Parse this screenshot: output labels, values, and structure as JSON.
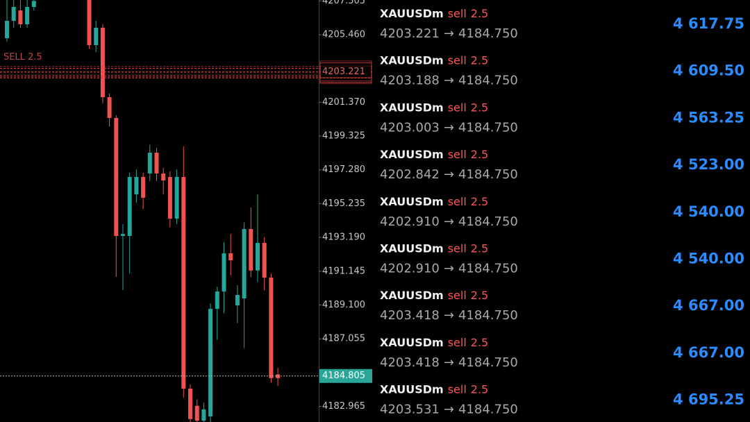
{
  "price_chart": {
    "ylim": [
      4182.02,
      4207.56
    ],
    "yticks": [
      {
        "value": 4207.505,
        "label": "4207.505"
      },
      {
        "value": 4205.46,
        "label": "4205.460"
      },
      {
        "value": 4201.37,
        "label": "4201.370"
      },
      4199.325,
      {
        "value": 4197.28,
        "label": "4197.280"
      },
      4195.235,
      {
        "value": 4193.19,
        "label": "4193.190"
      },
      4191.145,
      {
        "value": 4189.1,
        "label": "4189.100"
      },
      4187.055,
      4182.965
    ],
    "current_price": 4184.805,
    "order_label": "SELL 2.5",
    "up_color": "#26a69a",
    "down_color": "#ef5350",
    "candles": [
      {
        "open": 4205.25,
        "high": 4207.56,
        "low": 4205.04,
        "close": 4206.3
      },
      {
        "open": 4206.3,
        "high": 4207.6,
        "low": 4205.88,
        "close": 4207.14
      },
      {
        "open": 4206.93,
        "high": 4207.6,
        "low": 4205.88,
        "close": 4206.09
      },
      {
        "open": 4206.09,
        "high": 4207.6,
        "low": 4205.88,
        "close": 4207.14
      },
      {
        "open": 4207.14,
        "high": 4207.6,
        "low": 4206.93,
        "close": 4207.5
      },
      {
        "open": 4207.6,
        "high": 4207.6,
        "low": 4204.6,
        "close": 4204.83
      },
      {
        "open": 4204.83,
        "high": 4206.3,
        "low": 4204.4,
        "close": 4205.88
      },
      {
        "open": 4205.88,
        "high": 4206.1,
        "low": 4201.3,
        "close": 4201.68
      },
      {
        "open": 4201.68,
        "high": 4201.9,
        "low": 4199.9,
        "close": 4200.42
      },
      {
        "open": 4200.42,
        "high": 4200.6,
        "low": 4190.8,
        "close": 4193.28
      },
      {
        "open": 4193.28,
        "high": 4194.0,
        "low": 4190.0,
        "close": 4193.4
      },
      {
        "open": 4193.28,
        "high": 4197.1,
        "low": 4191.0,
        "close": 4196.85
      },
      {
        "open": 4195.8,
        "high": 4197.3,
        "low": 4195.3,
        "close": 4196.85
      },
      {
        "open": 4196.85,
        "high": 4197.1,
        "low": 4194.9,
        "close": 4195.59
      },
      {
        "open": 4197.06,
        "high": 4198.8,
        "low": 4196.6,
        "close": 4198.32
      },
      {
        "open": 4198.32,
        "high": 4198.6,
        "low": 4196.6,
        "close": 4197.06
      },
      {
        "open": 4197.06,
        "high": 4197.4,
        "low": 4195.8,
        "close": 4196.64
      },
      {
        "open": 4196.85,
        "high": 4197.2,
        "low": 4193.8,
        "close": 4194.33
      },
      {
        "open": 4194.33,
        "high": 4197.3,
        "low": 4194.0,
        "close": 4196.85
      },
      {
        "open": 4196.85,
        "high": 4198.7,
        "low": 4183.5,
        "close": 4184.04
      },
      {
        "open": 4184.04,
        "high": 4184.3,
        "low": 4181.9,
        "close": 4182.2
      },
      {
        "open": 4183.0,
        "high": 4183.4,
        "low": 4181.9,
        "close": 4182.1
      },
      {
        "open": 4182.1,
        "high": 4183.2,
        "low": 4181.9,
        "close": 4182.78
      },
      {
        "open": 4182.36,
        "high": 4189.2,
        "low": 4181.9,
        "close": 4188.87
      },
      {
        "open": 4188.87,
        "high": 4190.2,
        "low": 4187.0,
        "close": 4189.92
      },
      {
        "open": 4189.92,
        "high": 4192.9,
        "low": 4188.6,
        "close": 4192.23
      },
      {
        "open": 4192.23,
        "high": 4193.4,
        "low": 4190.9,
        "close": 4191.81
      },
      {
        "open": 4189.08,
        "high": 4190.3,
        "low": 4188.0,
        "close": 4189.71
      },
      {
        "open": 4189.5,
        "high": 4194.1,
        "low": 4186.5,
        "close": 4193.7
      },
      {
        "open": 4193.7,
        "high": 4195.0,
        "low": 4190.8,
        "close": 4191.19
      },
      {
        "open": 4191.19,
        "high": 4195.8,
        "low": 4190.5,
        "close": 4192.86
      },
      {
        "open": 4192.86,
        "high": 4193.2,
        "low": 4190.0,
        "close": 4190.76
      },
      {
        "open": 4190.76,
        "high": 4191.0,
        "low": 4184.4,
        "close": 4184.67
      },
      {
        "open": 4184.9,
        "high": 4185.3,
        "low": 4184.2,
        "close": 4184.67
      }
    ]
  },
  "arrow": "→",
  "orders": [
    {
      "symbol": "XAUUSDm",
      "side": "sell",
      "volume": 2.5,
      "open": {
        "value": 4203.221,
        "label": "4203.221"
      },
      "close": {
        "value": 4184.75,
        "label": "4184.750"
      },
      "profit": {
        "value": 4617.75,
        "label": "4 617.75"
      }
    },
    {
      "symbol": "XAUUSDm",
      "side": "sell",
      "volume": 2.5,
      "open": {
        "value": 4203.188,
        "label": "4203.188"
      },
      "close": {
        "value": 4184.75,
        "label": "4184.750"
      },
      "profit": {
        "value": 4609.5,
        "label": "4 609.50"
      }
    },
    {
      "symbol": "XAUUSDm",
      "side": "sell",
      "volume": 2.5,
      "open": {
        "value": 4203.003,
        "label": "4203.003"
      },
      "close": {
        "value": 4184.75,
        "label": "4184.750"
      },
      "profit": {
        "value": 4563.25,
        "label": "4 563.25"
      }
    },
    {
      "symbol": "XAUUSDm",
      "side": "sell",
      "volume": 2.5,
      "open": {
        "value": 4202.842,
        "label": "4202.842"
      },
      "close": {
        "value": 4184.75,
        "label": "4184.750"
      },
      "profit": {
        "value": 4523,
        "label": "4 523.00"
      }
    },
    {
      "symbol": "XAUUSDm",
      "side": "sell",
      "volume": 2.5,
      "open": {
        "value": 4202.91,
        "label": "4202.910"
      },
      "close": {
        "value": 4184.75,
        "label": "4184.750"
      },
      "profit": {
        "value": 4540,
        "label": "4 540.00"
      }
    },
    {
      "symbol": "XAUUSDm",
      "side": "sell",
      "volume": 2.5,
      "open": {
        "value": 4202.91,
        "label": "4202.910"
      },
      "close": {
        "value": 4184.75,
        "label": "4184.750"
      },
      "profit": {
        "value": 4540,
        "label": "4 540.00"
      }
    },
    {
      "symbol": "XAUUSDm",
      "side": "sell",
      "volume": 2.5,
      "open": {
        "value": 4203.418,
        "label": "4203.418"
      },
      "close": {
        "value": 4184.75,
        "label": "4184.750"
      },
      "profit": {
        "value": 4667,
        "label": "4 667.00"
      }
    },
    {
      "symbol": "XAUUSDm",
      "side": "sell",
      "volume": 2.5,
      "open": {
        "value": 4203.418,
        "label": "4203.418"
      },
      "close": {
        "value": 4184.75,
        "label": "4184.750"
      },
      "profit": {
        "value": 4667,
        "label": "4 667.00"
      }
    },
    {
      "symbol": "XAUUSDm",
      "side": "sell",
      "volume": 2.5,
      "open": {
        "value": 4203.531,
        "label": "4203.531"
      },
      "close": {
        "value": 4184.75,
        "label": "4184.750"
      },
      "profit": {
        "value": 4695.25,
        "label": "4 695.25"
      }
    }
  ]
}
